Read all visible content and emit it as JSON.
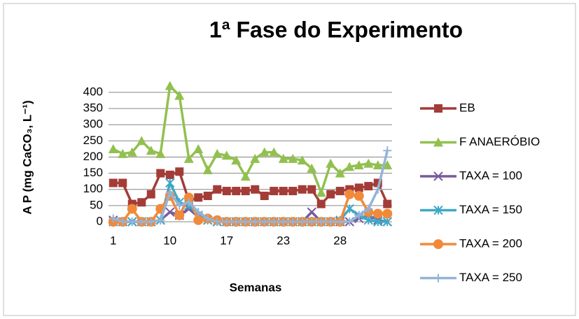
{
  "chart_data": {
    "type": "line",
    "title": "1ª Fase do Experimento",
    "ylabel": "A P (mg CaCO₃, L⁻¹)",
    "xlabel": "Semanas",
    "categories": [
      "1",
      null,
      null,
      null,
      null,
      null,
      "10",
      null,
      null,
      null,
      null,
      null,
      "17",
      null,
      null,
      null,
      null,
      null,
      "23",
      null,
      null,
      null,
      null,
      null,
      "28",
      null,
      null,
      null,
      null,
      null
    ],
    "ylim": [
      0,
      400
    ],
    "yticks": [
      0,
      50,
      100,
      150,
      200,
      250,
      300,
      350,
      400
    ],
    "grid": true,
    "legend": "right",
    "series": [
      {
        "name": "EB",
        "color": "#a33c37",
        "marker": "square",
        "values": [
          120,
          120,
          55,
          60,
          85,
          150,
          145,
          155,
          65,
          75,
          80,
          100,
          95,
          95,
          95,
          100,
          80,
          95,
          95,
          95,
          100,
          100,
          55,
          85,
          95,
          100,
          105,
          110,
          120,
          55
        ]
      },
      {
        "name": "F ANAERÓBIO",
        "color": "#92c050",
        "marker": "triangle",
        "values": [
          225,
          210,
          215,
          250,
          220,
          210,
          420,
          390,
          195,
          225,
          160,
          210,
          205,
          190,
          140,
          195,
          215,
          215,
          195,
          195,
          190,
          165,
          90,
          180,
          150,
          170,
          175,
          180,
          175,
          175
        ]
      },
      {
        "name": "TAXA = 100",
        "color": "#7a5a9a",
        "marker": "x",
        "values": [
          5,
          0,
          0,
          0,
          0,
          5,
          30,
          20,
          40,
          15,
          5,
          0,
          0,
          0,
          0,
          0,
          0,
          0,
          0,
          0,
          0,
          30,
          0,
          0,
          0,
          0,
          10,
          20,
          5,
          0
        ]
      },
      {
        "name": "TAXA = 150",
        "color": "#3fa8c6",
        "marker": "star",
        "values": [
          0,
          0,
          0,
          0,
          0,
          5,
          120,
          60,
          50,
          20,
          5,
          0,
          0,
          0,
          0,
          0,
          0,
          0,
          0,
          0,
          0,
          0,
          0,
          0,
          5,
          40,
          20,
          5,
          0,
          0
        ]
      },
      {
        "name": "TAXA = 200",
        "color": "#f08a3a",
        "marker": "circle",
        "values": [
          0,
          0,
          40,
          0,
          0,
          40,
          80,
          20,
          75,
          5,
          10,
          5,
          0,
          0,
          0,
          0,
          0,
          0,
          0,
          0,
          0,
          0,
          0,
          0,
          0,
          85,
          80,
          30,
          25,
          25
        ]
      },
      {
        "name": "TAXA = 250",
        "color": "#95b3d7",
        "marker": "plus",
        "values": [
          10,
          0,
          0,
          0,
          0,
          5,
          90,
          50,
          60,
          30,
          10,
          0,
          0,
          0,
          0,
          0,
          0,
          0,
          0,
          0,
          0,
          0,
          0,
          0,
          0,
          0,
          20,
          40,
          100,
          220
        ]
      }
    ]
  }
}
